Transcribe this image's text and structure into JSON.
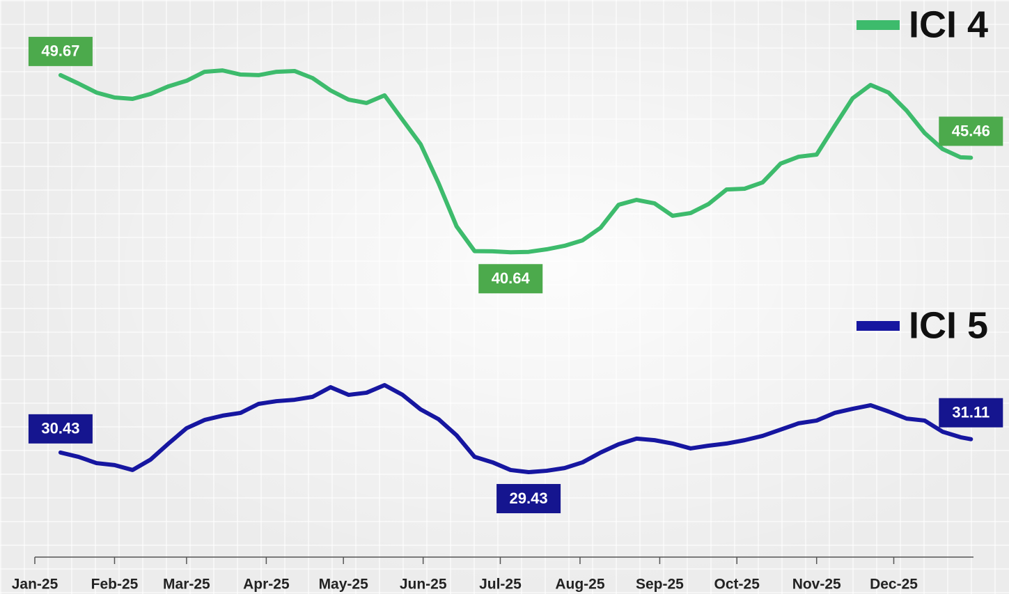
{
  "chart_data": {
    "type": "line",
    "xlim": [
      0,
      365
    ],
    "xticks": [
      {
        "value": 0,
        "label": "Jan-25"
      },
      {
        "value": 31,
        "label": "Feb-25"
      },
      {
        "value": 59,
        "label": "Mar-25"
      },
      {
        "value": 90,
        "label": "Apr-25"
      },
      {
        "value": 120,
        "label": "May-25"
      },
      {
        "value": 151,
        "label": "Jun-25"
      },
      {
        "value": 181,
        "label": "Jul-25"
      },
      {
        "value": 212,
        "label": "Aug-25"
      },
      {
        "value": 243,
        "label": "Sep-25"
      },
      {
        "value": 273,
        "label": "Oct-25"
      },
      {
        "value": 304,
        "label": "Nov-25"
      },
      {
        "value": 334,
        "label": "Dec-25"
      }
    ],
    "ylim": [
      25.1,
      53.5
    ],
    "x": [
      10,
      17,
      24,
      31,
      38,
      45,
      52,
      59,
      66,
      73,
      80,
      87,
      94,
      101,
      108,
      115,
      122,
      129,
      136,
      143,
      150,
      157,
      164,
      171,
      178,
      185,
      192,
      199,
      206,
      213,
      220,
      227,
      234,
      241,
      248,
      255,
      262,
      269,
      276,
      283,
      290,
      297,
      304,
      311,
      318,
      325,
      332,
      339,
      346,
      353,
      360,
      364
    ],
    "series": [
      {
        "name": "ICI 4",
        "color": "#3dbb6c",
        "label_color": "#4caa4c",
        "values": [
          49.67,
          49.24,
          48.78,
          48.53,
          48.46,
          48.71,
          49.1,
          49.38,
          49.84,
          49.91,
          49.7,
          49.67,
          49.84,
          49.88,
          49.52,
          48.89,
          48.42,
          48.25,
          48.64,
          47.39,
          46.15,
          44.16,
          41.96,
          40.7,
          40.69,
          40.64,
          40.66,
          40.79,
          40.97,
          41.25,
          41.89,
          43.06,
          43.31,
          43.13,
          42.5,
          42.64,
          43.1,
          43.84,
          43.88,
          44.2,
          45.16,
          45.51,
          45.62,
          47.07,
          48.49,
          49.17,
          48.78,
          47.86,
          46.72,
          45.9,
          45.48,
          45.46
        ]
      },
      {
        "name": "ICI 5",
        "color": "#1616a0",
        "label_color": "#15158f",
        "values": [
          30.43,
          30.21,
          29.89,
          29.79,
          29.54,
          30.07,
          30.89,
          31.67,
          32.09,
          32.31,
          32.45,
          32.91,
          33.05,
          33.12,
          33.27,
          33.76,
          33.37,
          33.48,
          33.87,
          33.37,
          32.63,
          32.13,
          31.31,
          30.21,
          29.93,
          29.54,
          29.43,
          29.5,
          29.64,
          29.93,
          30.43,
          30.85,
          31.14,
          31.06,
          30.89,
          30.64,
          30.78,
          30.89,
          31.06,
          31.28,
          31.6,
          31.92,
          32.06,
          32.45,
          32.66,
          32.84,
          32.52,
          32.16,
          32.06,
          31.49,
          31.21,
          31.11
        ]
      }
    ]
  }
}
